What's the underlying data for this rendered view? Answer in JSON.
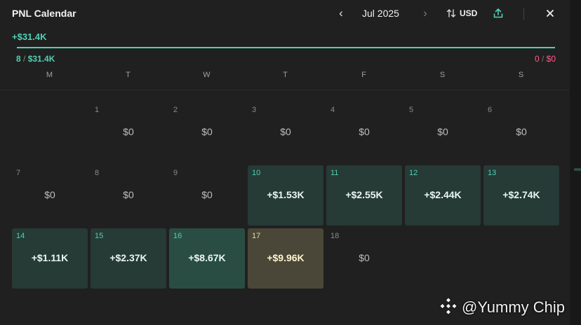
{
  "header": {
    "title": "PNL Calendar",
    "month": "Jul 2025",
    "prev": "‹",
    "next": "›",
    "currency": "USD",
    "close": "✕"
  },
  "summary": {
    "total": "+$31.4K",
    "win_days": "8",
    "win_amount": "$31.4K",
    "loss_days": "0",
    "loss_amount": "$0",
    "separator": " / ",
    "progress_fraction": 1.0
  },
  "weekdays": [
    "M",
    "T",
    "W",
    "T",
    "F",
    "S",
    "S"
  ],
  "days": [
    {
      "day": "1",
      "value": "$0",
      "status": "zero"
    },
    {
      "day": "2",
      "value": "$0",
      "status": "zero"
    },
    {
      "day": "3",
      "value": "$0",
      "status": "zero"
    },
    {
      "day": "4",
      "value": "$0",
      "status": "zero"
    },
    {
      "day": "5",
      "value": "$0",
      "status": "zero"
    },
    {
      "day": "6",
      "value": "$0",
      "status": "zero"
    },
    {
      "day": "7",
      "value": "$0",
      "status": "zero"
    },
    {
      "day": "8",
      "value": "$0",
      "status": "zero"
    },
    {
      "day": "9",
      "value": "$0",
      "status": "zero"
    },
    {
      "day": "10",
      "value": "+$1.53K",
      "status": "win"
    },
    {
      "day": "11",
      "value": "+$2.55K",
      "status": "win"
    },
    {
      "day": "12",
      "value": "+$2.44K",
      "status": "win"
    },
    {
      "day": "13",
      "value": "+$2.74K",
      "status": "win"
    },
    {
      "day": "14",
      "value": "+$1.11K",
      "status": "win"
    },
    {
      "day": "15",
      "value": "+$2.37K",
      "status": "win"
    },
    {
      "day": "16",
      "value": "+$8.67K",
      "status": "strong"
    },
    {
      "day": "17",
      "value": "+$9.96K",
      "status": "today"
    },
    {
      "day": "18",
      "value": "$0",
      "status": "zero"
    }
  ],
  "colors": {
    "accent": "#4fd1b4",
    "loss": "#ff5c8a",
    "today": "#4a4738"
  },
  "watermark": {
    "text": "@Yummy Chip",
    "icon": "binance-logo-icon"
  }
}
